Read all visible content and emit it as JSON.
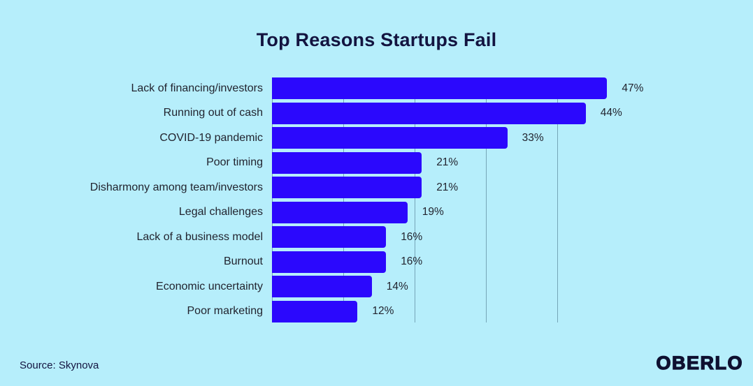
{
  "chart_data": {
    "type": "bar",
    "orientation": "horizontal",
    "title": "Top Reasons Startups Fail",
    "categories": [
      "Lack of financing/investors",
      "Running out of cash",
      "COVID-19 pandemic",
      "Poor timing",
      "Disharmony among team/investors",
      "Legal challenges",
      "Lack of a business model",
      "Burnout",
      "Economic uncertainty",
      "Poor marketing"
    ],
    "values": [
      47,
      44,
      33,
      21,
      21,
      19,
      16,
      16,
      14,
      12
    ],
    "value_labels": [
      "47%",
      "44%",
      "33%",
      "21%",
      "21%",
      "19%",
      "16%",
      "16%",
      "14%",
      "12%"
    ],
    "xlabel": "",
    "ylabel": "",
    "xlim": [
      0,
      50
    ],
    "gridlines_percent": [
      0,
      10,
      20,
      30,
      40
    ],
    "grid": "vertical-only, no tick labels",
    "legend": "none",
    "colors": {
      "background": "#b6eefb",
      "bar": "#2b08fd",
      "title": "#131440",
      "text": "#22242f",
      "gridline": "#76a6b8",
      "logo": "#0e1030"
    }
  },
  "footer": {
    "source": "Source: Skynova",
    "brand": "OBERLO"
  }
}
